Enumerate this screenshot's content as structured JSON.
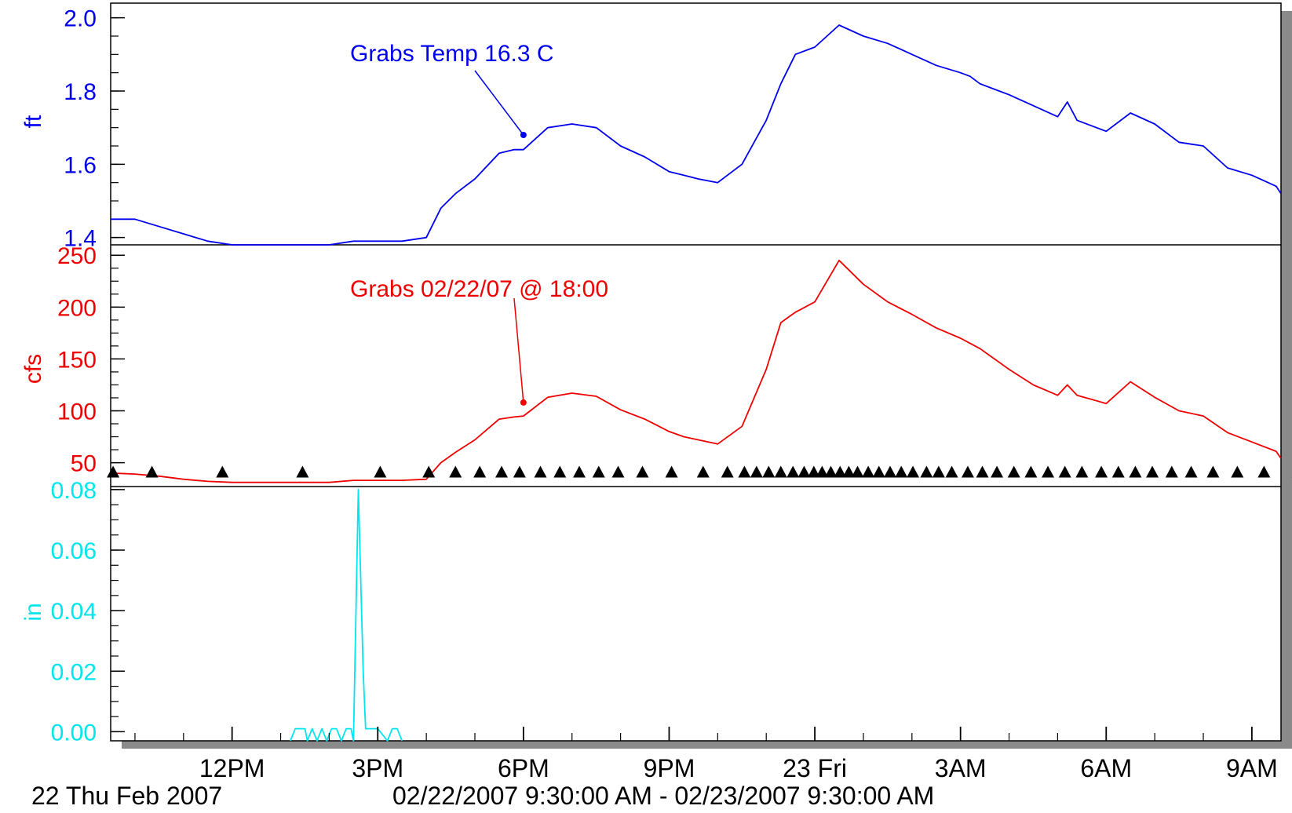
{
  "chart_data": [
    {
      "type": "line",
      "panel": "stage",
      "ylabel": "ft",
      "ylim": [
        1.38,
        2.04
      ],
      "yticks": [
        1.4,
        1.6,
        1.8,
        2.0
      ],
      "ytick_labels": [
        "1.4",
        "1.6",
        "1.8",
        "2.0"
      ],
      "color": "#0000ee",
      "series": [
        {
          "x": [
            9.5,
            10.0,
            10.5,
            11.0,
            11.5,
            12.0,
            12.5,
            13.0,
            13.5,
            14.0,
            14.5,
            15.0,
            15.5,
            16.0,
            16.3,
            16.6,
            17.0,
            17.5,
            17.8,
            18.0,
            18.5,
            19.0,
            19.5,
            20.0,
            20.5,
            21.0,
            21.3,
            21.6,
            22.0,
            22.5,
            23.0,
            23.3,
            23.6,
            24.0,
            24.5,
            25.0,
            25.5,
            26.0,
            26.5,
            27.0,
            27.2,
            27.4,
            28.0,
            28.5,
            29.0,
            29.2,
            29.4,
            30.0,
            30.5,
            31.0,
            31.5,
            32.0,
            32.5,
            33.0,
            33.5,
            33.6
          ],
          "y": [
            1.45,
            1.45,
            1.43,
            1.41,
            1.39,
            1.38,
            1.38,
            1.38,
            1.38,
            1.38,
            1.39,
            1.39,
            1.39,
            1.4,
            1.48,
            1.52,
            1.56,
            1.63,
            1.64,
            1.64,
            1.7,
            1.71,
            1.7,
            1.65,
            1.62,
            1.58,
            1.57,
            1.56,
            1.55,
            1.6,
            1.72,
            1.82,
            1.9,
            1.92,
            1.98,
            1.95,
            1.93,
            1.9,
            1.87,
            1.85,
            1.84,
            1.82,
            1.79,
            1.76,
            1.73,
            1.77,
            1.72,
            1.69,
            1.74,
            1.71,
            1.66,
            1.65,
            1.59,
            1.57,
            1.54,
            1.52
          ]
        }
      ],
      "annotations": [
        {
          "text": "Grabs Temp 16.3 C",
          "x": 18.0,
          "y": 1.68
        }
      ]
    },
    {
      "type": "line",
      "panel": "discharge",
      "ylabel": "cfs",
      "ylim": [
        27,
        260
      ],
      "yticks": [
        50,
        100,
        150,
        200,
        250
      ],
      "ytick_labels": [
        "50",
        "100",
        "150",
        "200",
        "250"
      ],
      "color": "#ee0000",
      "series": [
        {
          "x": [
            9.5,
            10.0,
            10.5,
            11.0,
            11.5,
            12.0,
            12.5,
            13.0,
            13.5,
            14.0,
            14.5,
            15.0,
            15.5,
            16.0,
            16.3,
            16.6,
            17.0,
            17.5,
            17.8,
            18.0,
            18.5,
            19.0,
            19.5,
            20.0,
            20.5,
            21.0,
            21.3,
            21.6,
            22.0,
            22.5,
            23.0,
            23.3,
            23.6,
            24.0,
            24.5,
            25.0,
            25.5,
            26.0,
            26.5,
            27.0,
            27.2,
            27.4,
            28.0,
            28.5,
            29.0,
            29.2,
            29.4,
            30.0,
            30.5,
            31.0,
            31.5,
            32.0,
            32.5,
            33.0,
            33.5,
            33.6
          ],
          "y": [
            40,
            39,
            37,
            34,
            32,
            31,
            31,
            31,
            31,
            31,
            33,
            33,
            33,
            34,
            50,
            60,
            72,
            92,
            94,
            95,
            113,
            117,
            114,
            101,
            92,
            80,
            75,
            72,
            68,
            85,
            140,
            185,
            195,
            205,
            245,
            222,
            205,
            193,
            180,
            170,
            165,
            160,
            140,
            125,
            115,
            125,
            115,
            107,
            128,
            113,
            100,
            95,
            79,
            70,
            61,
            54
          ]
        }
      ],
      "annotations": [
        {
          "text": "Grabs 02/22/07  @ 18:00",
          "x": 18.0,
          "y": 108
        }
      ],
      "markers": {
        "shape": "triangle",
        "color": "#000000",
        "y": 41,
        "x": [
          9.55,
          10.35,
          11.8,
          13.45,
          15.05,
          16.05,
          16.6,
          17.1,
          17.55,
          17.92,
          18.35,
          18.75,
          19.15,
          19.55,
          19.95,
          20.45,
          21.05,
          21.7,
          22.2,
          22.55,
          22.8,
          23.05,
          23.3,
          23.55,
          23.78,
          23.98,
          24.15,
          24.33,
          24.52,
          24.7,
          24.88,
          25.1,
          25.32,
          25.55,
          25.78,
          26.02,
          26.3,
          26.55,
          26.82,
          27.15,
          27.45,
          27.75,
          28.1,
          28.45,
          28.8,
          29.15,
          29.5,
          29.9,
          30.25,
          30.6,
          30.95,
          31.35,
          31.75,
          32.2,
          32.7,
          33.25,
          33.95,
          34.7
        ]
      }
    },
    {
      "type": "line",
      "panel": "precipitation",
      "ylabel": "in",
      "ylim": [
        -0.003,
        0.081
      ],
      "yticks": [
        0.0,
        0.02,
        0.04,
        0.06,
        0.08
      ],
      "ytick_labels": [
        "0.00",
        "0.02",
        "0.04",
        "0.06",
        "0.08"
      ],
      "color": "#00e5ee",
      "series": [
        {
          "x": [
            13.2,
            13.3,
            13.5,
            13.55,
            13.65,
            13.75,
            13.85,
            13.95,
            14.05,
            14.15,
            14.25,
            14.35,
            14.45,
            14.5,
            14.6,
            14.7,
            14.75,
            14.85,
            14.95,
            15.0,
            15.2,
            15.3,
            15.4,
            15.5
          ],
          "y": [
            -0.003,
            0.001,
            0.001,
            -0.003,
            0.001,
            -0.003,
            0.001,
            -0.003,
            0.001,
            0.001,
            -0.003,
            0.001,
            0.001,
            -0.003,
            0.08,
            0.02,
            0.001,
            0.001,
            0.001,
            0.001,
            -0.003,
            0.001,
            0.001,
            -0.003
          ]
        }
      ]
    }
  ],
  "xaxis": {
    "xlim": [
      9.5,
      33.6
    ],
    "major_ticks": [
      12,
      15,
      18,
      21,
      24,
      27,
      30,
      33
    ],
    "tick_labels": [
      "12PM",
      "3PM",
      "6PM",
      "9PM",
      "23 Fri",
      "3AM",
      "6AM",
      "9AM"
    ],
    "date_label": "22 Thu Feb 2007",
    "range_label": "02/22/2007 9:30:00 AM - 02/23/2007 9:30:00 AM"
  }
}
